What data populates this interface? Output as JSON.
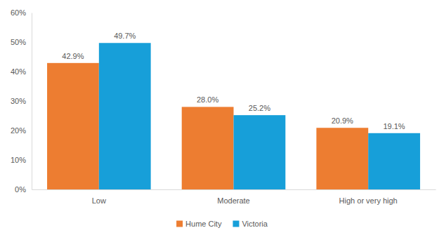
{
  "chart_data": {
    "type": "bar",
    "categories": [
      "Low",
      "Moderate",
      "High or very high"
    ],
    "series": [
      {
        "name": "Hume City",
        "color": "#ed7d31",
        "values": [
          42.9,
          28.0,
          20.9
        ],
        "value_labels": [
          "42.9%",
          "28.0%",
          "20.9%"
        ]
      },
      {
        "name": "Victoria",
        "color": "#179fd9",
        "values": [
          49.7,
          25.2,
          19.1
        ],
        "value_labels": [
          "49.7%",
          "25.2%",
          "19.1%"
        ]
      }
    ],
    "ylim": [
      0,
      60
    ],
    "yticks": [
      {
        "value": 0,
        "label": "0%"
      },
      {
        "value": 10,
        "label": "10%"
      },
      {
        "value": 20,
        "label": "20%"
      },
      {
        "value": 30,
        "label": "30%"
      },
      {
        "value": 40,
        "label": "40%"
      },
      {
        "value": 50,
        "label": "50%"
      },
      {
        "value": 60,
        "label": "60%"
      }
    ],
    "grid": false,
    "legend": "bottom",
    "data_labels": true
  }
}
